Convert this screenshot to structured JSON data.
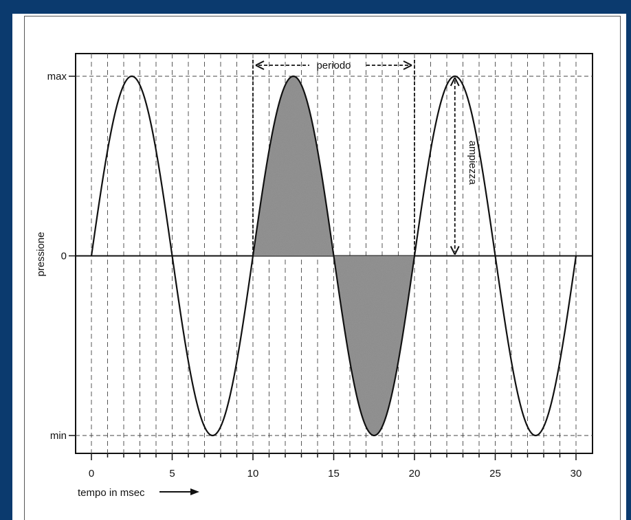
{
  "chart_data": {
    "type": "line",
    "title": "",
    "xlabel": "tempo in msec",
    "ylabel": "pressione",
    "xlim": [
      0,
      30
    ],
    "ylim": [
      -1,
      1
    ],
    "x_ticks": [
      "0",
      "5",
      "10",
      "15",
      "20",
      "25",
      "30"
    ],
    "y_tick_labels": {
      "max": "max",
      "zero": "0",
      "min": "min"
    },
    "grid": "vertical dashed every 1 msec",
    "series": [
      {
        "function": "sine",
        "period_ms": 10,
        "amplitude": 1,
        "x_start": 0,
        "x_end": 30,
        "shaded_from": 10,
        "shaded_to": 20
      }
    ],
    "annotations": [
      {
        "text": "periodo",
        "from_x": 10,
        "to_x": 20,
        "at": "top"
      },
      {
        "text": "ampiezza",
        "x": 22.5,
        "from_y": 0,
        "to_y": 1
      }
    ]
  }
}
